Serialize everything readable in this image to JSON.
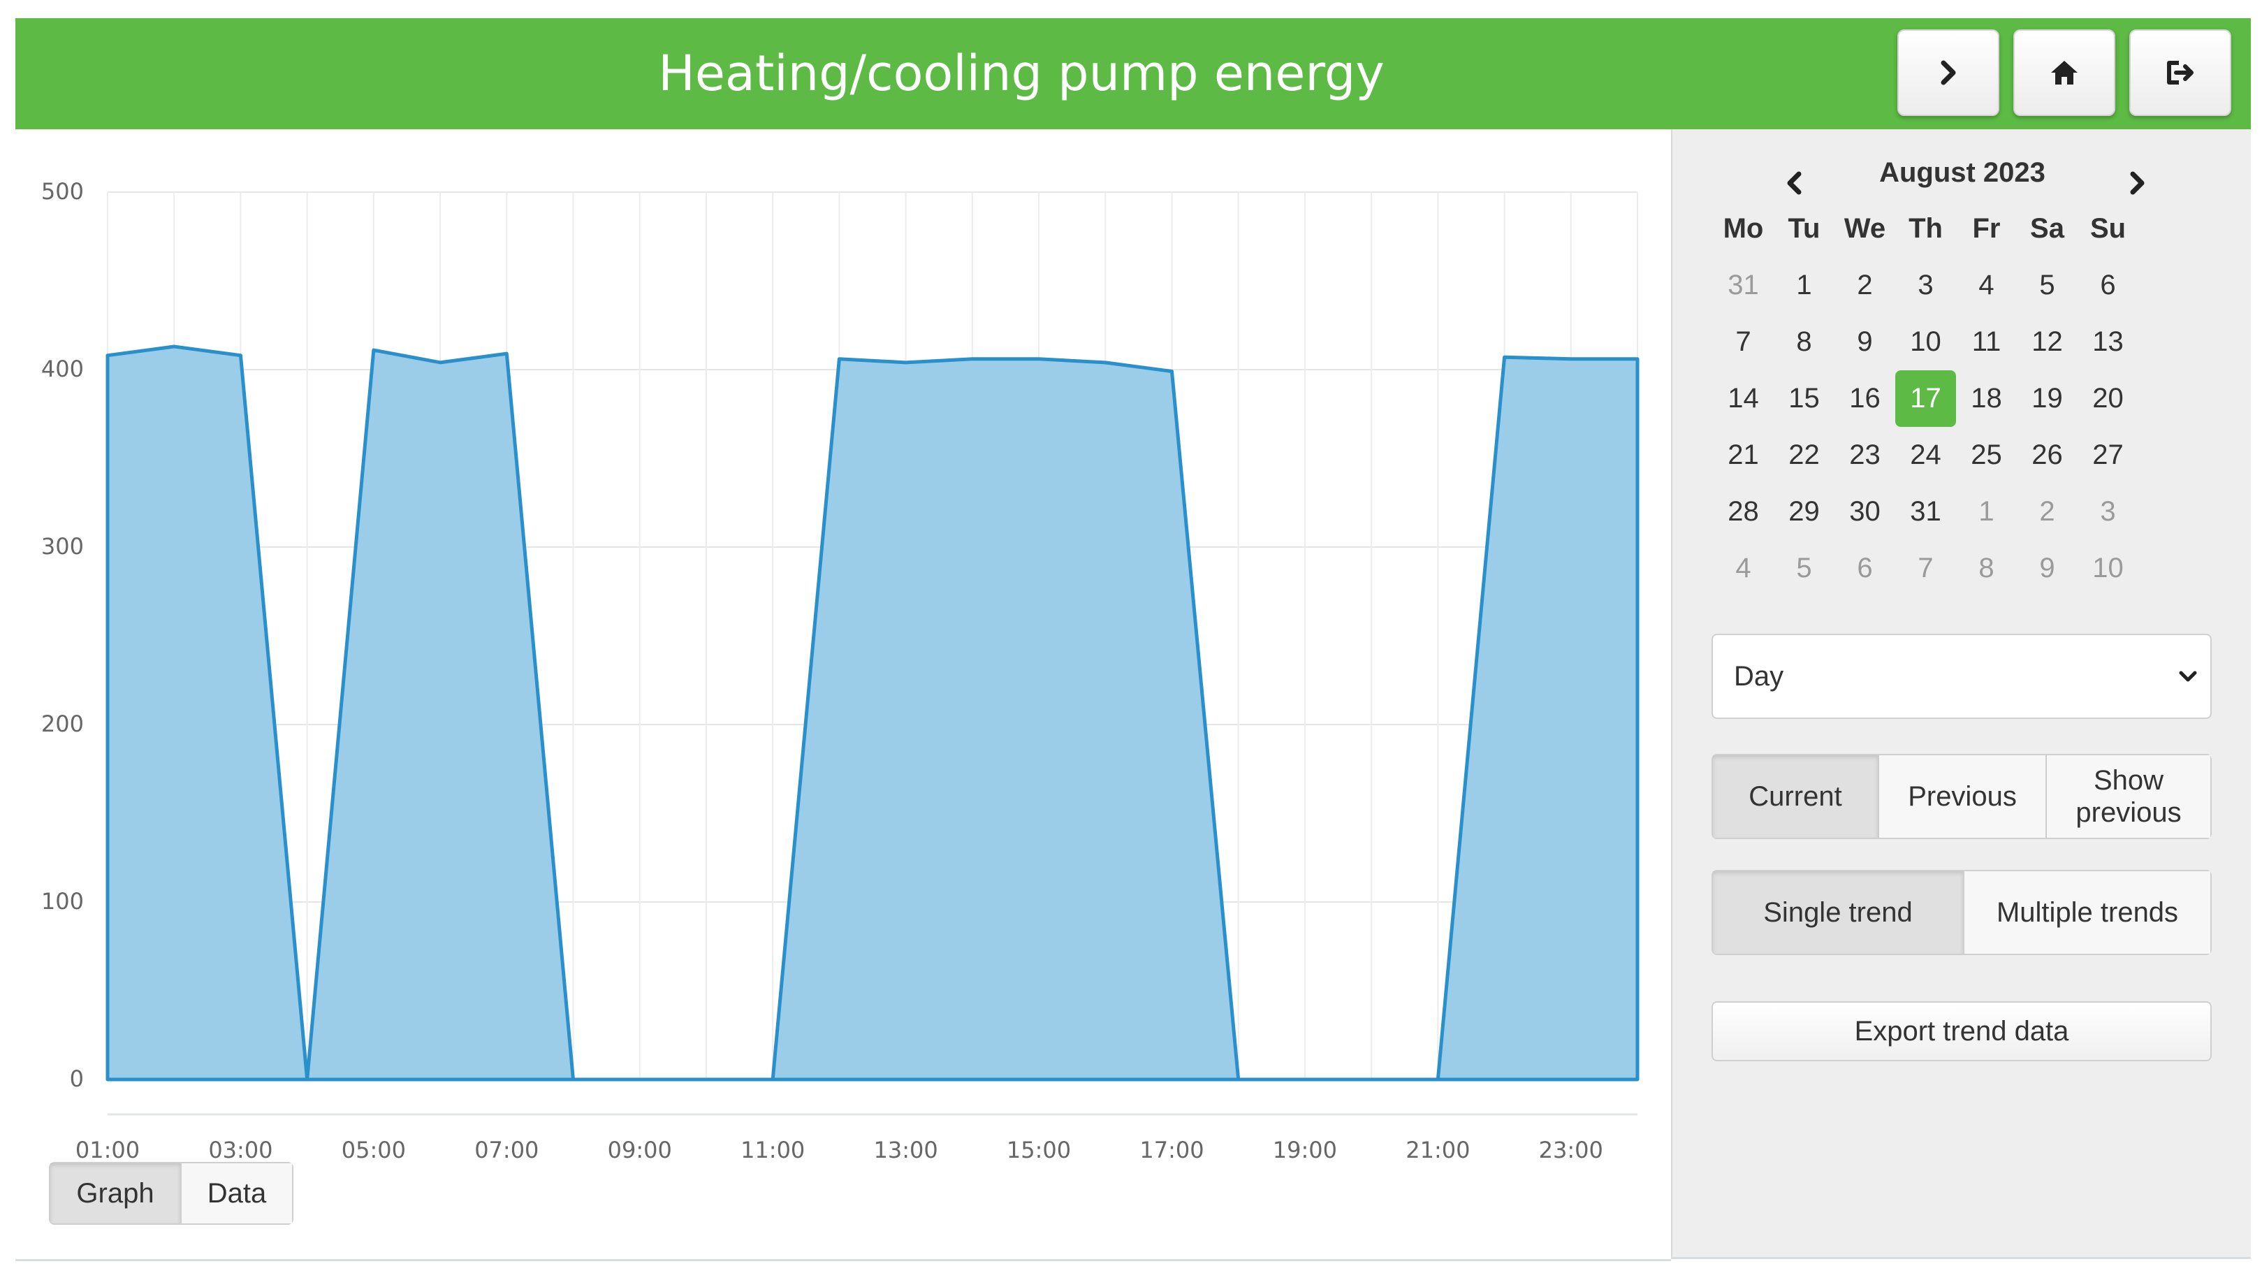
{
  "header": {
    "title": "Heating/cooling pump energy",
    "buttons": [
      {
        "name": "forward",
        "icon": "chevron-right-icon"
      },
      {
        "name": "home",
        "icon": "home-icon"
      },
      {
        "name": "logout",
        "icon": "logout-icon"
      }
    ]
  },
  "colors": {
    "header_bg": "#5dba45",
    "series_fill": "#9bcde8",
    "series_line": "#2a90cc",
    "selected_day": "#5dba45"
  },
  "chart_data": {
    "type": "area",
    "xlabel": "",
    "ylabel": "",
    "ylim": [
      0,
      500
    ],
    "yticks": [
      "0",
      "100",
      "200",
      "300",
      "400",
      "500"
    ],
    "xticks": [
      "01:00",
      "03:00",
      "05:00",
      "07:00",
      "09:00",
      "11:00",
      "13:00",
      "15:00",
      "17:00",
      "19:00",
      "21:00",
      "23:00"
    ],
    "grid": true,
    "series": [
      {
        "x": [
          "01:00",
          "02:00",
          "03:00",
          "04:00",
          "05:00",
          "06:00",
          "07:00",
          "08:00",
          "09:00",
          "10:00",
          "11:00",
          "12:00",
          "13:00",
          "14:00",
          "15:00",
          "16:00",
          "17:00",
          "18:00",
          "19:00",
          "20:00",
          "21:00",
          "22:00",
          "23:00",
          "00:00"
        ],
        "values": [
          408,
          413,
          408,
          0,
          411,
          404,
          409,
          0,
          0,
          0,
          0,
          406,
          404,
          406,
          406,
          404,
          399,
          0,
          0,
          0,
          0,
          407,
          406,
          406
        ]
      }
    ]
  },
  "view_toggle": {
    "options": [
      "Graph",
      "Data"
    ],
    "active": "Graph"
  },
  "calendar": {
    "month_label": "August 2023",
    "prev_icon": "chevron-left-icon",
    "next_icon": "chevron-right-icon",
    "weekdays": [
      "Mo",
      "Tu",
      "We",
      "Th",
      "Fr",
      "Sa",
      "Su"
    ],
    "weeks": [
      [
        {
          "d": "31",
          "other": true
        },
        {
          "d": "1"
        },
        {
          "d": "2"
        },
        {
          "d": "3"
        },
        {
          "d": "4"
        },
        {
          "d": "5"
        },
        {
          "d": "6"
        }
      ],
      [
        {
          "d": "7"
        },
        {
          "d": "8"
        },
        {
          "d": "9"
        },
        {
          "d": "10"
        },
        {
          "d": "11"
        },
        {
          "d": "12"
        },
        {
          "d": "13"
        }
      ],
      [
        {
          "d": "14"
        },
        {
          "d": "15"
        },
        {
          "d": "16"
        },
        {
          "d": "17",
          "selected": true
        },
        {
          "d": "18"
        },
        {
          "d": "19"
        },
        {
          "d": "20"
        }
      ],
      [
        {
          "d": "21"
        },
        {
          "d": "22"
        },
        {
          "d": "23"
        },
        {
          "d": "24"
        },
        {
          "d": "25"
        },
        {
          "d": "26"
        },
        {
          "d": "27"
        }
      ],
      [
        {
          "d": "28"
        },
        {
          "d": "29"
        },
        {
          "d": "30"
        },
        {
          "d": "31"
        },
        {
          "d": "1",
          "other": true
        },
        {
          "d": "2",
          "other": true
        },
        {
          "d": "3",
          "other": true
        }
      ],
      [
        {
          "d": "4",
          "other": true
        },
        {
          "d": "5",
          "other": true
        },
        {
          "d": "6",
          "other": true
        },
        {
          "d": "7",
          "other": true
        },
        {
          "d": "8",
          "other": true
        },
        {
          "d": "9",
          "other": true
        },
        {
          "d": "10",
          "other": true
        }
      ]
    ]
  },
  "controls": {
    "range_select": {
      "value": "Day",
      "icon": "chevron-down-icon"
    },
    "period": {
      "options": [
        "Current",
        "Previous",
        "Show previous"
      ],
      "active": "Current"
    },
    "trend_mode": {
      "options": [
        "Single trend",
        "Multiple trends"
      ],
      "active": "Single trend"
    },
    "export_label": "Export trend data"
  }
}
